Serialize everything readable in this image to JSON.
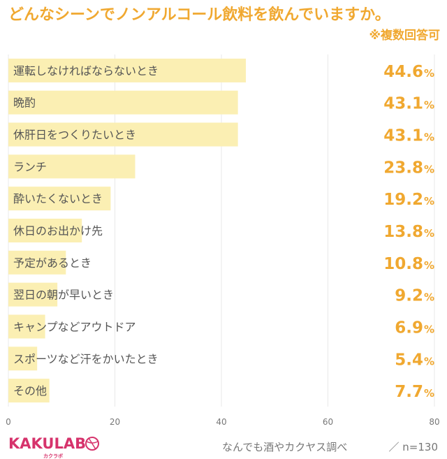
{
  "title": "どんなシーンでノンアルコール飲料を飲んでいますか。",
  "subtitle": "※複数回答可",
  "footer": {
    "source": "なんでも酒やカクヤス調べ",
    "sample": "／ n=130"
  },
  "logo": {
    "text": "KAKULAB",
    "sub": "カクラボ"
  },
  "colors": {
    "bar": "#fbefb3",
    "accent": "#f0a830",
    "logo": "#d6336c",
    "grid": "#e8e8e8"
  },
  "chart_data": {
    "type": "bar",
    "orientation": "horizontal",
    "unit": "%",
    "categories": [
      "運転しなければならないとき",
      "晩酌",
      "休肝日をつくりたいとき",
      "ランチ",
      "酔いたくないとき",
      "休日のお出かけ先",
      "予定があるとき",
      "翌日の朝が早いとき",
      "キャンプなどアウトドア",
      "スポーツなど汗をかいたとき",
      "その他"
    ],
    "values": [
      44.6,
      43.1,
      43.1,
      23.8,
      19.2,
      13.8,
      10.8,
      9.2,
      6.9,
      5.4,
      7.7
    ],
    "value_labels": [
      "44.6",
      "43.1",
      "43.1",
      "23.8",
      "19.2",
      "13.8",
      "10.8",
      "9.2",
      "6.9",
      "5.4",
      "7.7"
    ],
    "xlim": [
      0,
      80
    ],
    "xticks": [
      "0",
      "20",
      "40",
      "60",
      "80"
    ],
    "grid": true
  }
}
